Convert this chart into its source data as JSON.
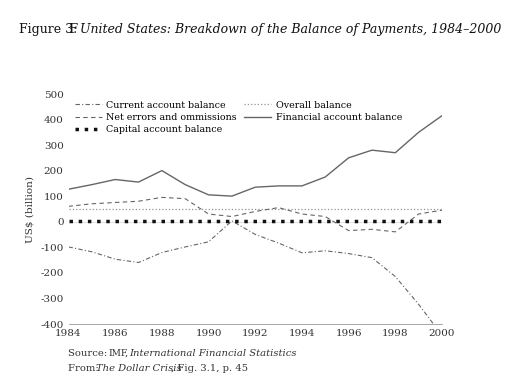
{
  "ylabel": "US§ (billion)",
  "ylim": [
    -400,
    500
  ],
  "xlim": [
    1984,
    2000
  ],
  "yticks": [
    -400,
    -300,
    -200,
    -100,
    0,
    100,
    200,
    300,
    400,
    500
  ],
  "xticks": [
    1984,
    1986,
    1988,
    1990,
    1992,
    1994,
    1996,
    1998,
    2000
  ],
  "years": [
    1984,
    1985,
    1986,
    1987,
    1988,
    1989,
    1990,
    1991,
    1992,
    1993,
    1994,
    1995,
    1996,
    1997,
    1998,
    1999,
    2000
  ],
  "current_account": [
    -99,
    -118,
    -147,
    -160,
    -121,
    -99,
    -79,
    3,
    -50,
    -84,
    -122,
    -114,
    -125,
    -141,
    -215,
    -324,
    -445
  ],
  "capital_account": [
    2,
    2,
    2,
    2,
    2,
    2,
    2,
    2,
    2,
    2,
    2,
    2,
    2,
    2,
    2,
    2,
    2
  ],
  "financial_account": [
    127,
    145,
    165,
    155,
    200,
    145,
    105,
    100,
    135,
    140,
    140,
    175,
    250,
    280,
    270,
    350,
    415
  ],
  "net_errors": [
    60,
    70,
    75,
    80,
    95,
    90,
    30,
    20,
    40,
    55,
    30,
    20,
    -35,
    -30,
    -40,
    30,
    45
  ],
  "overall_balance": [
    50,
    50,
    50,
    50,
    50,
    50,
    50,
    50,
    50,
    50,
    50,
    50,
    50,
    50,
    50,
    50,
    50
  ],
  "line_color": "#666666",
  "bg_color": "#ffffff",
  "title_prefix": "Figure 3: ",
  "title_italic": "United States: Breakdown of the Balance of Payments, 1984–2000",
  "source_line1_normal": "Source: ",
  "source_line1_smallcaps": "imf",
  "source_line1_italic": ", International Financial Statistics",
  "source_line2_normal": "From: ",
  "source_line2_italic": "The Dollar Crisis",
  "source_line2_normal2": ", Fig. 3.1, p. 45",
  "legend_labels": [
    "Current account balance",
    "Net errors and ommissions",
    "Capital account balance",
    "Overall balance",
    "Financial account balance"
  ]
}
